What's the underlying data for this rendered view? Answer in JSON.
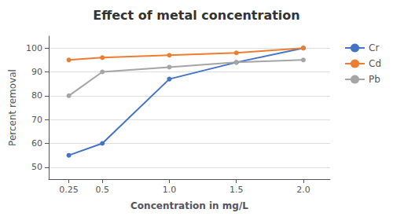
{
  "chart_data": {
    "type": "line",
    "title": "Effect of metal concentration",
    "x_label": "Concentration in mg/L",
    "y_label": "Percent removal",
    "x": [
      0.25,
      0.5,
      1.0,
      1.5,
      2.0
    ],
    "series": [
      {
        "name": "Cr",
        "color": "#4472C4",
        "marker": "circle",
        "values": [
          55,
          60,
          87,
          94,
          100
        ]
      },
      {
        "name": "Cd",
        "color": "#ED7D31",
        "marker": "circle",
        "values": [
          95,
          96,
          97,
          98,
          100
        ]
      },
      {
        "name": "Pb",
        "color": "#A5A5A5",
        "marker": "circle",
        "values": [
          80,
          90,
          92,
          94,
          95
        ]
      }
    ],
    "xlim": [
      0.1,
      2.2
    ],
    "xticks": [
      0.25,
      0.5,
      {
        "value": 1,
        "label": "1.0"
      },
      1.5,
      {
        "value": 2,
        "label": "2.0"
      }
    ],
    "ylim": [
      45,
      105
    ],
    "yticks": [
      50,
      60,
      70,
      80,
      90,
      100
    ],
    "grid": "y",
    "legend": "right"
  }
}
